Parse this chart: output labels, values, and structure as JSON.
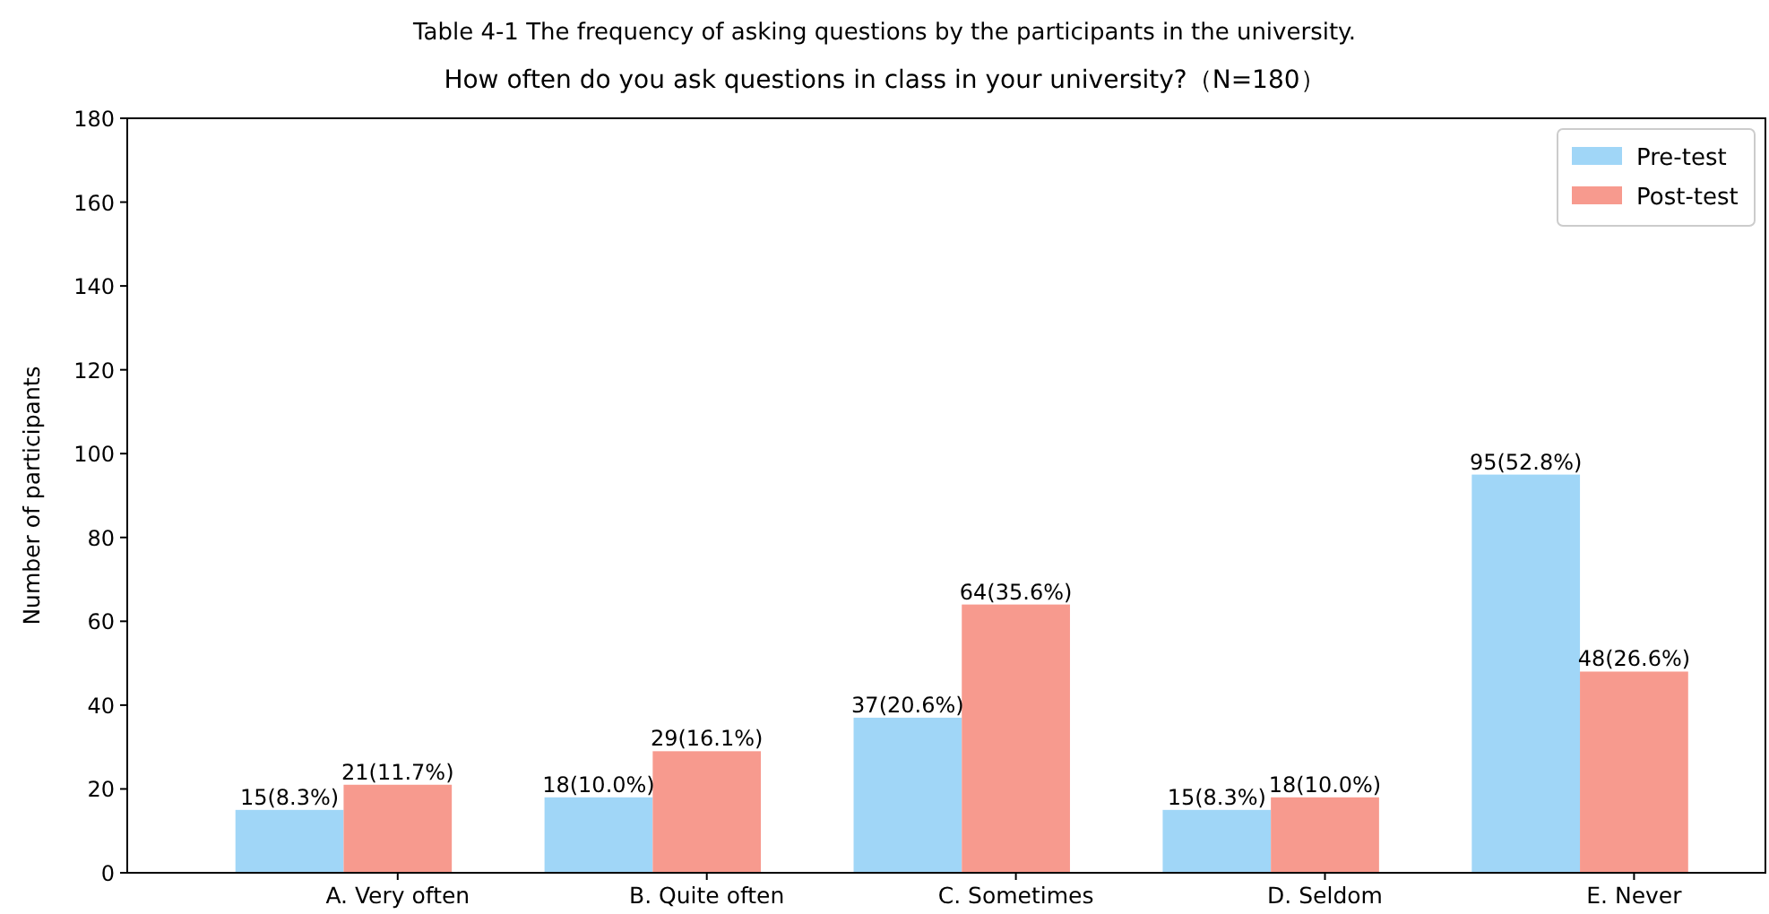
{
  "chart_data": {
    "type": "bar",
    "title": "Table 4-1 The frequency of asking questions by the participants in the university.",
    "subtitle": "How often do you ask questions in class in your university?（N=180）",
    "ylabel": "Number of participants",
    "categories": [
      "A. Very often",
      "B. Quite often",
      "C. Sometimes",
      "D. Seldom",
      "E. Never"
    ],
    "series": [
      {
        "name": "Pre-test",
        "color": "#a0d6f7",
        "values": [
          15,
          18,
          37,
          15,
          95
        ],
        "value_labels": [
          "15(8.3%)",
          "18(10.0%)",
          "37(20.6%)",
          "15(8.3%)",
          "95(52.8%)"
        ]
      },
      {
        "name": "Post-test",
        "color": "#f79a8e",
        "values": [
          21,
          29,
          64,
          18,
          48
        ],
        "value_labels": [
          "21(11.7%)",
          "29(16.1%)",
          "64(35.6%)",
          "18(10.0%)",
          "48(26.6%)"
        ]
      }
    ],
    "ylim": [
      0,
      180
    ],
    "yticks": [
      0,
      20,
      40,
      60,
      80,
      100,
      120,
      140,
      160,
      180
    ],
    "grid": false,
    "legend": "top right"
  }
}
